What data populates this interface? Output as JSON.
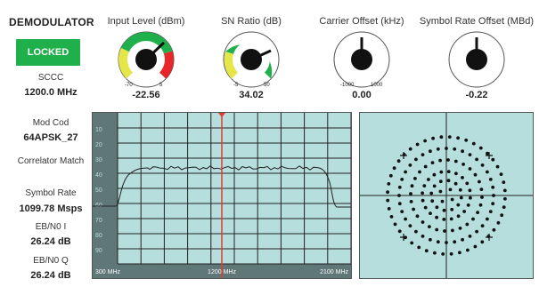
{
  "demodulator": {
    "title": "DEMODULATOR",
    "status": "LOCKED",
    "modulation": "SCCC",
    "frequency": "1200.0 MHz",
    "modcod_label": "Mod Cod",
    "modcod_value": "64APSK_27",
    "correlator_label": "Correlator Match",
    "symbol_rate_label": "Symbol Rate",
    "symbol_rate_value": "1099.78 Msps",
    "ebn0_i_label": "EB/N0 I",
    "ebn0_i_value": "26.24 dB",
    "ebn0_q_label": "EB/N0 Q",
    "ebn0_q_value": "26.24 dB"
  },
  "gauges": {
    "input_level": {
      "title": "Input Level (dBm)",
      "value": "-22.56",
      "min_label": "-70",
      "max_label": "5"
    },
    "sn_ratio": {
      "title": "SN Ratio (dB)",
      "value": "34.02",
      "min_label": "-5",
      "max_label": "50"
    },
    "carrier_offset": {
      "title": "Carrier Offset (kHz)",
      "value": "0.00",
      "min_label": "-1000",
      "max_label": "1000"
    },
    "symbol_rate_offset": {
      "title": "Symbol Rate Offset (MBd)",
      "value": "-0.22"
    }
  },
  "spectrum": {
    "y_ticks": [
      "10",
      "20",
      "30",
      "40",
      "50",
      "60",
      "70",
      "80",
      "90"
    ],
    "x_start": "300 MHz",
    "x_center": "1200 MHz",
    "x_end": "2100 MHz"
  },
  "colors": {
    "green": "#20b04b",
    "yellow": "#e5e64a",
    "red": "#e8262a",
    "panel_bg": "#b6dedd",
    "marker": "#e23b2e"
  }
}
